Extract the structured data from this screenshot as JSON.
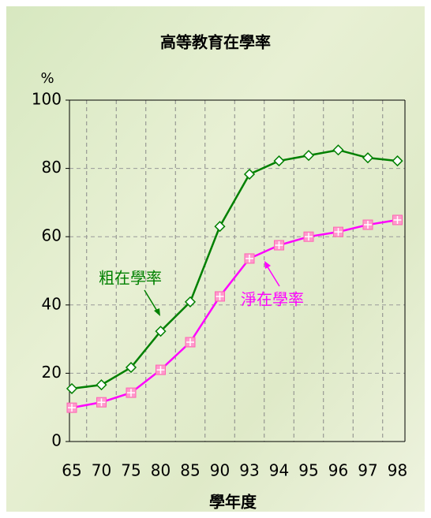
{
  "chart_data": {
    "type": "line",
    "title": "高等教育在學率",
    "y_unit": "%",
    "x_label": "學年度",
    "categories": [
      "65",
      "70",
      "75",
      "80",
      "85",
      "90",
      "93",
      "94",
      "95",
      "96",
      "97",
      "98"
    ],
    "series": [
      {
        "name": "粗在學率",
        "color": "#008000",
        "values": [
          15.5,
          16.6,
          21.7,
          32.3,
          40.9,
          63,
          78.3,
          82.2,
          83.8,
          85.4,
          83.1,
          82.2
        ]
      },
      {
        "name": "淨在學率",
        "color": "#ff00ff",
        "values": [
          9.9,
          11.5,
          14.3,
          21,
          29.1,
          42.5,
          53.6,
          57.5,
          60,
          61.4,
          63.5,
          64.9
        ]
      }
    ],
    "ylim": [
      0,
      100
    ],
    "yticks": [
      0,
      20,
      40,
      60,
      80,
      100
    ],
    "grid": true
  }
}
